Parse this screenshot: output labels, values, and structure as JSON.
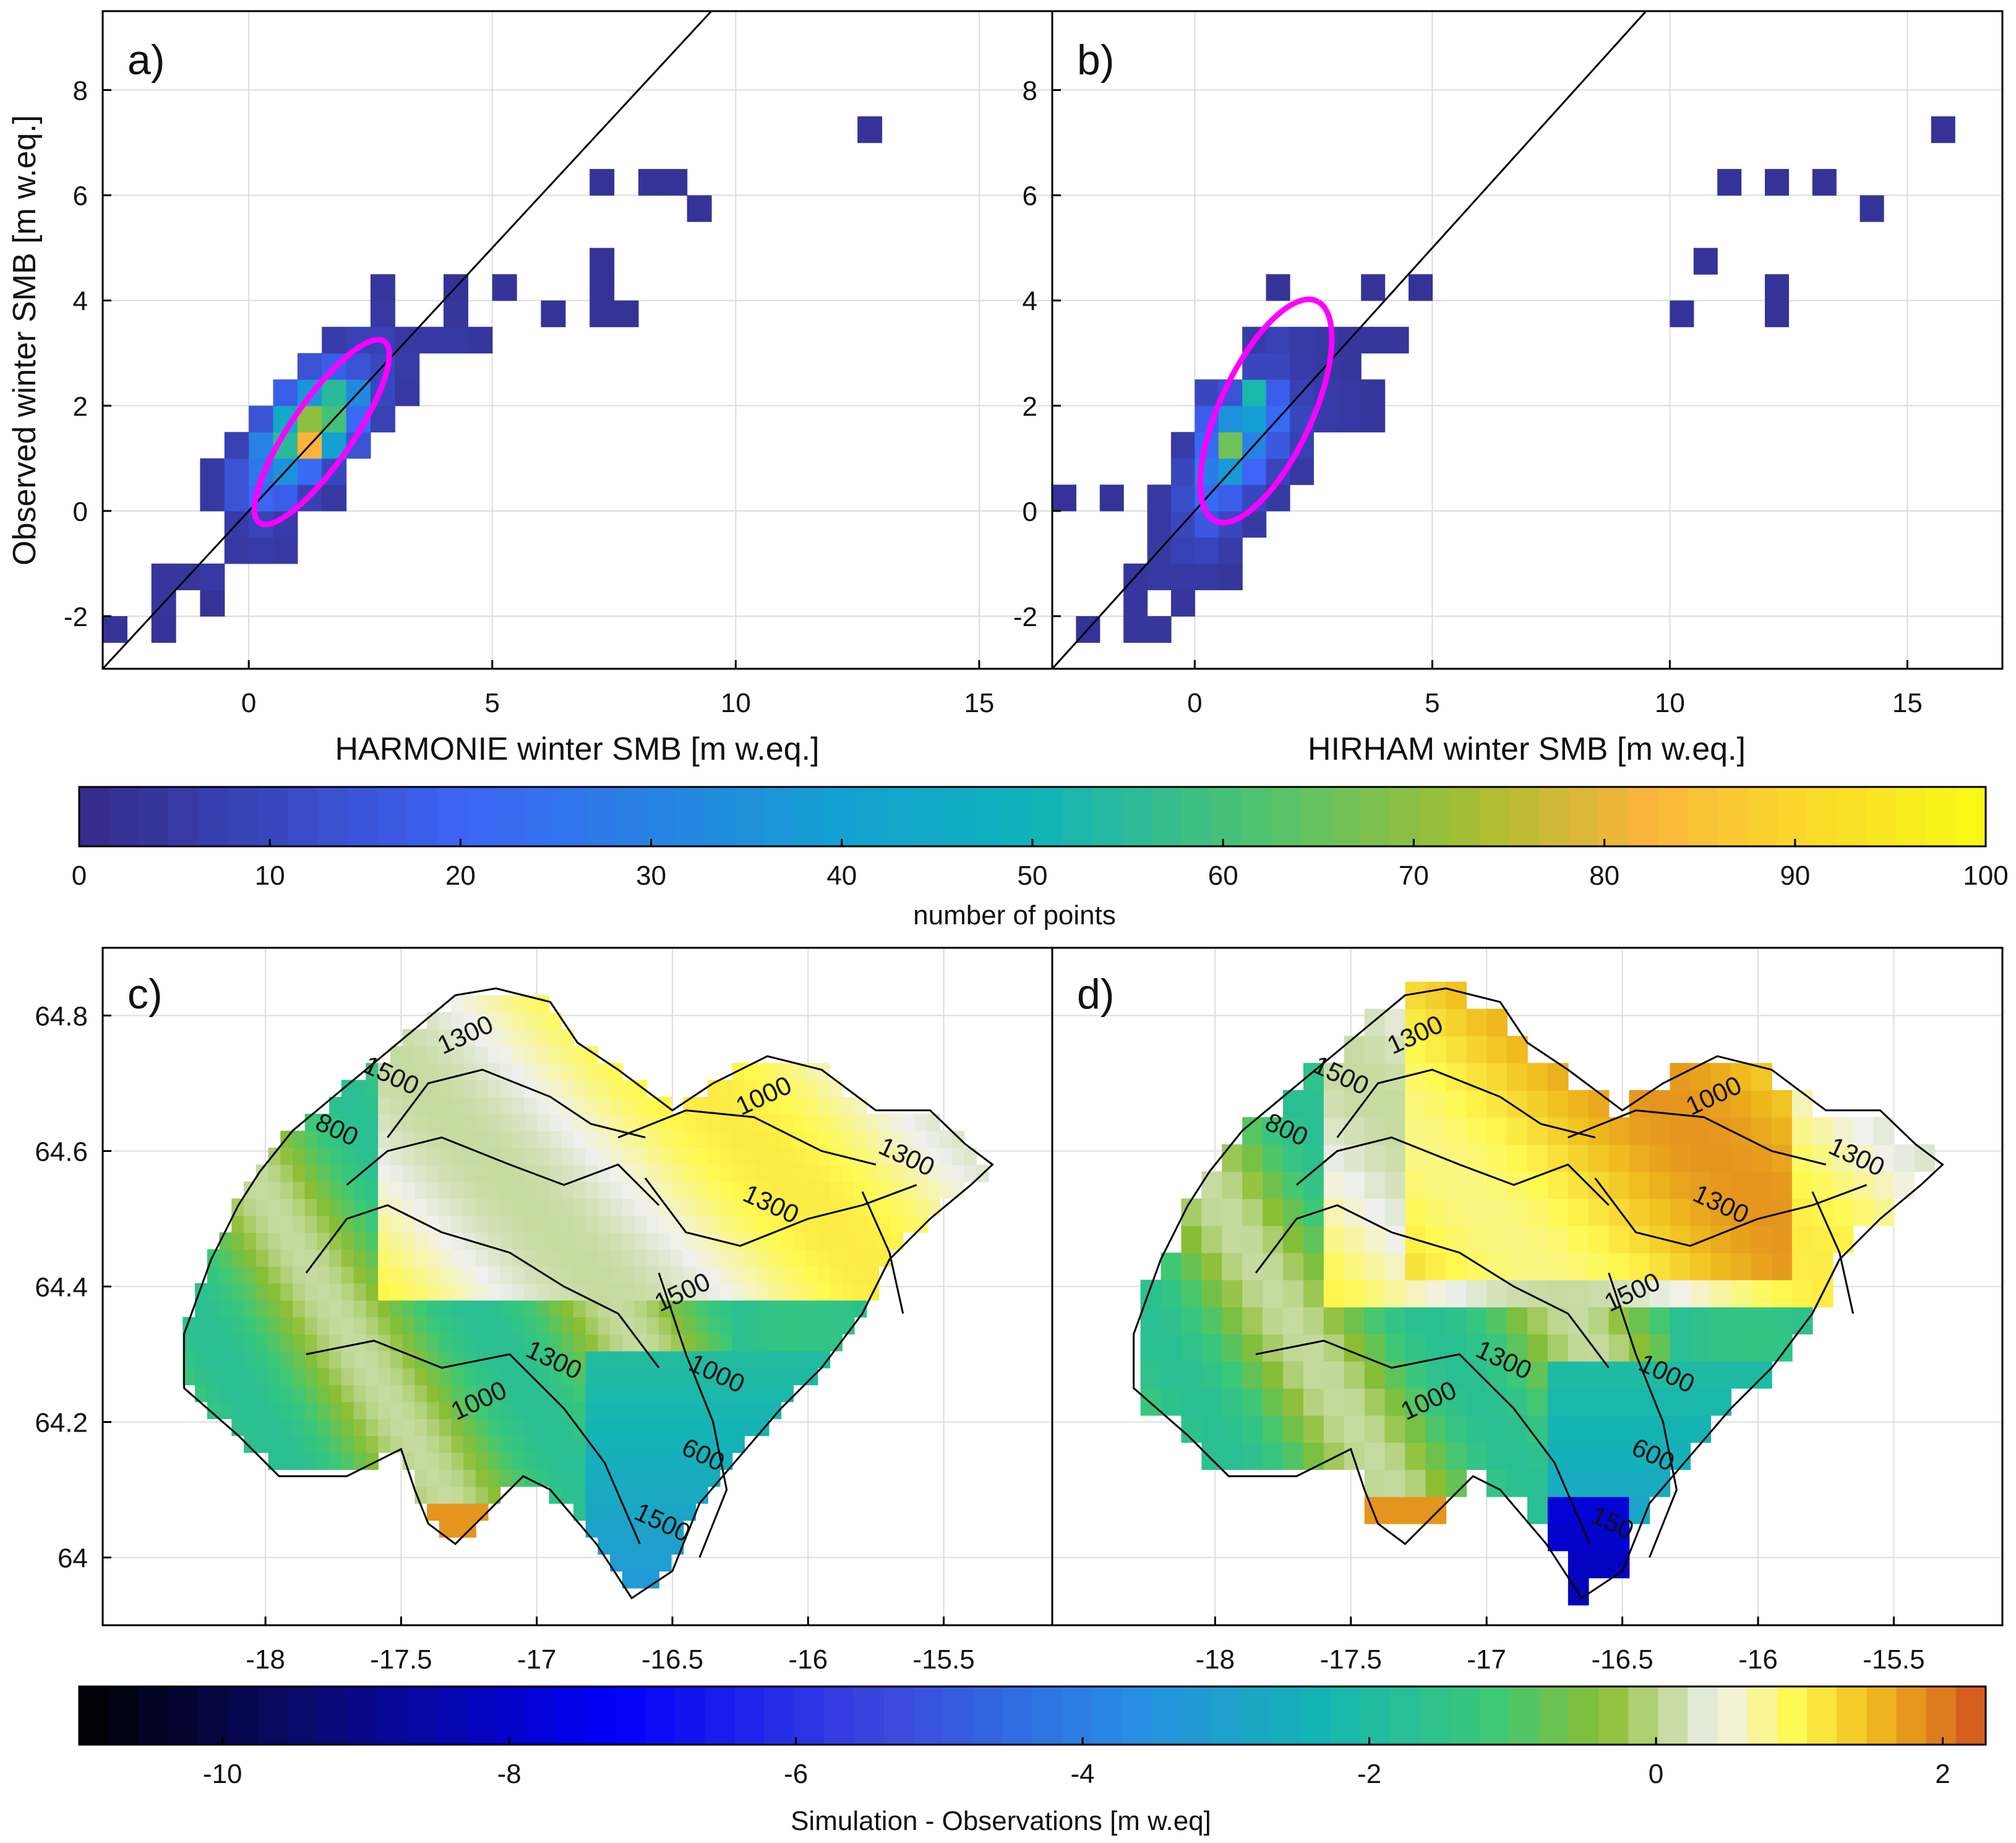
{
  "chart_data": [
    {
      "panel": "a)",
      "type": "heatmap",
      "xlabel": "HARMONIE winter SMB [m w.eq.]",
      "ylabel": "Observed winter SMB [m w.eq.]",
      "xlim": [
        -3,
        16.5
      ],
      "ylim": [
        -3,
        9.5
      ],
      "xticks": [
        "0",
        "5",
        "10",
        "15"
      ],
      "yticks": [
        "-2",
        "0",
        "2",
        "4",
        "6",
        "8"
      ],
      "bin_size": 0.5,
      "one_to_one_line": true,
      "ellipse": {
        "cx": 1.5,
        "cy": 1.5,
        "rx": 2.15,
        "ry": 0.62,
        "angle_deg": 53
      },
      "bins": [
        [
          -2.75,
          -2.25,
          3
        ],
        [
          -1.75,
          -2.25,
          3
        ],
        [
          -1.75,
          -1.75,
          4
        ],
        [
          -1.75,
          -1.25,
          4
        ],
        [
          -1.25,
          -1.25,
          4
        ],
        [
          -0.75,
          -1.75,
          3
        ],
        [
          -0.75,
          -1.25,
          5
        ],
        [
          -0.25,
          -0.75,
          5
        ],
        [
          0.25,
          -0.75,
          6
        ],
        [
          -0.25,
          -0.25,
          6
        ],
        [
          0.25,
          -0.25,
          9
        ],
        [
          0.75,
          -0.75,
          5
        ],
        [
          0.75,
          -0.25,
          6
        ],
        [
          -0.75,
          0.25,
          5
        ],
        [
          -0.25,
          0.25,
          14
        ],
        [
          0.25,
          0.25,
          20
        ],
        [
          0.75,
          0.25,
          18
        ],
        [
          1.25,
          0.25,
          8
        ],
        [
          1.75,
          0.25,
          5
        ],
        [
          -0.75,
          0.75,
          5
        ],
        [
          -0.25,
          0.75,
          14
        ],
        [
          0.25,
          0.75,
          26
        ],
        [
          0.75,
          0.75,
          35
        ],
        [
          1.25,
          0.75,
          22
        ],
        [
          1.75,
          0.75,
          10
        ],
        [
          -0.25,
          1.25,
          8
        ],
        [
          0.25,
          1.25,
          30
        ],
        [
          0.75,
          1.25,
          55
        ],
        [
          1.25,
          1.25,
          82
        ],
        [
          1.75,
          1.25,
          40
        ],
        [
          2.25,
          1.25,
          14
        ],
        [
          0.25,
          1.75,
          14
        ],
        [
          0.75,
          1.75,
          45
        ],
        [
          1.25,
          1.75,
          70
        ],
        [
          1.75,
          1.75,
          60
        ],
        [
          2.25,
          1.75,
          22
        ],
        [
          2.75,
          1.75,
          8
        ],
        [
          0.75,
          2.25,
          18
        ],
        [
          1.25,
          2.25,
          36
        ],
        [
          1.75,
          2.25,
          55
        ],
        [
          2.25,
          2.25,
          32
        ],
        [
          2.75,
          2.25,
          10
        ],
        [
          3.25,
          2.25,
          5
        ],
        [
          1.25,
          2.75,
          14
        ],
        [
          1.75,
          2.75,
          18
        ],
        [
          2.25,
          2.75,
          14
        ],
        [
          2.75,
          2.75,
          10
        ],
        [
          3.25,
          2.75,
          6
        ],
        [
          1.75,
          3.25,
          6
        ],
        [
          2.25,
          3.25,
          8
        ],
        [
          2.75,
          3.25,
          8
        ],
        [
          3.25,
          3.25,
          5
        ],
        [
          3.75,
          3.25,
          5
        ],
        [
          4.25,
          3.25,
          5
        ],
        [
          4.75,
          3.25,
          4
        ],
        [
          2.75,
          3.75,
          5
        ],
        [
          4.25,
          3.75,
          4
        ],
        [
          2.75,
          4.25,
          4
        ],
        [
          4.25,
          4.25,
          3
        ],
        [
          5.25,
          4.25,
          3
        ],
        [
          6.25,
          3.75,
          3
        ],
        [
          7.25,
          3.75,
          3
        ],
        [
          7.25,
          4.25,
          3
        ],
        [
          7.25,
          4.75,
          3
        ],
        [
          7.75,
          3.75,
          3
        ],
        [
          7.25,
          6.25,
          3
        ],
        [
          8.25,
          6.25,
          3
        ],
        [
          8.75,
          6.25,
          3
        ],
        [
          9.25,
          5.75,
          3
        ],
        [
          12.75,
          7.25,
          3
        ]
      ]
    },
    {
      "panel": "b)",
      "type": "heatmap",
      "xlabel": "HIRHAM winter SMB [m w.eq.]",
      "ylabel": "",
      "xlim": [
        -3,
        17
      ],
      "ylim": [
        -3,
        9.5
      ],
      "xticks": [
        "0",
        "5",
        "10",
        "15"
      ],
      "yticks": [
        "-2",
        "0",
        "2",
        "4",
        "6",
        "8"
      ],
      "bin_size": 0.5,
      "one_to_one_line": true,
      "ellipse": {
        "cx": 1.5,
        "cy": 1.9,
        "rx": 2.35,
        "ry": 0.95,
        "angle_deg": 62
      },
      "bins": [
        [
          -2.75,
          0.25,
          3
        ],
        [
          -1.75,
          0.25,
          3
        ],
        [
          -2.25,
          -2.25,
          3
        ],
        [
          -1.25,
          -2.25,
          4
        ],
        [
          -0.75,
          -2.25,
          4
        ],
        [
          -1.25,
          -1.75,
          4
        ],
        [
          -1.25,
          -1.25,
          4
        ],
        [
          -0.75,
          -1.25,
          5
        ],
        [
          -0.25,
          -1.75,
          4
        ],
        [
          -0.25,
          -1.25,
          5
        ],
        [
          0.25,
          -1.25,
          5
        ],
        [
          0.75,
          -1.25,
          4
        ],
        [
          -0.75,
          -0.75,
          5
        ],
        [
          -0.25,
          -0.75,
          8
        ],
        [
          0.25,
          -0.75,
          9
        ],
        [
          0.75,
          -0.75,
          6
        ],
        [
          -0.75,
          -0.25,
          5
        ],
        [
          -0.25,
          -0.25,
          10
        ],
        [
          0.25,
          -0.25,
          16
        ],
        [
          0.75,
          -0.25,
          10
        ],
        [
          1.25,
          -0.25,
          5
        ],
        [
          -0.75,
          0.25,
          5
        ],
        [
          -0.25,
          0.25,
          12
        ],
        [
          0.25,
          0.25,
          22
        ],
        [
          0.75,
          0.25,
          18
        ],
        [
          1.25,
          0.25,
          10
        ],
        [
          1.75,
          0.25,
          5
        ],
        [
          -0.25,
          0.75,
          10
        ],
        [
          0.25,
          0.75,
          28
        ],
        [
          0.75,
          0.75,
          38
        ],
        [
          1.25,
          0.75,
          20
        ],
        [
          1.75,
          0.75,
          9
        ],
        [
          2.25,
          0.75,
          5
        ],
        [
          -0.25,
          1.25,
          6
        ],
        [
          0.25,
          1.25,
          22
        ],
        [
          0.75,
          1.25,
          66
        ],
        [
          1.25,
          1.25,
          30
        ],
        [
          1.75,
          1.25,
          16
        ],
        [
          2.25,
          1.25,
          8
        ],
        [
          0.25,
          1.75,
          18
        ],
        [
          0.75,
          1.75,
          35
        ],
        [
          1.25,
          1.75,
          40
        ],
        [
          1.75,
          1.75,
          22
        ],
        [
          2.25,
          1.75,
          10
        ],
        [
          2.75,
          1.75,
          6
        ],
        [
          3.25,
          1.75,
          5
        ],
        [
          3.75,
          1.75,
          4
        ],
        [
          0.25,
          2.25,
          10
        ],
        [
          0.75,
          2.25,
          14
        ],
        [
          1.25,
          2.25,
          52
        ],
        [
          1.75,
          2.25,
          18
        ],
        [
          2.25,
          2.25,
          8
        ],
        [
          2.75,
          2.25,
          6
        ],
        [
          3.25,
          2.25,
          5
        ],
        [
          3.75,
          2.25,
          4
        ],
        [
          1.25,
          2.75,
          10
        ],
        [
          1.75,
          2.75,
          10
        ],
        [
          2.25,
          2.75,
          6
        ],
        [
          2.75,
          2.75,
          5
        ],
        [
          3.25,
          2.75,
          4
        ],
        [
          1.25,
          3.25,
          6
        ],
        [
          1.75,
          3.25,
          8
        ],
        [
          2.25,
          3.25,
          6
        ],
        [
          2.75,
          3.25,
          5
        ],
        [
          3.25,
          3.25,
          4
        ],
        [
          3.75,
          3.25,
          4
        ],
        [
          4.25,
          3.25,
          4
        ],
        [
          1.75,
          4.25,
          3
        ],
        [
          3.75,
          4.25,
          3
        ],
        [
          4.75,
          4.25,
          3
        ],
        [
          10.25,
          3.75,
          3
        ],
        [
          10.75,
          4.75,
          3
        ],
        [
          12.25,
          3.75,
          3
        ],
        [
          12.25,
          4.25,
          3
        ],
        [
          11.25,
          6.25,
          3
        ],
        [
          12.25,
          6.25,
          3
        ],
        [
          13.25,
          6.25,
          3
        ],
        [
          14.25,
          5.75,
          3
        ],
        [
          15.75,
          7.25,
          3
        ]
      ]
    },
    {
      "panel": "c)",
      "type": "heatmap",
      "description_kind": "map",
      "xlim": [
        -18.6,
        -15.1
      ],
      "ylim": [
        63.9,
        64.9
      ],
      "xticks": [
        "-18",
        "-17.5",
        "-17",
        "-16.5",
        "-16",
        "-15.5"
      ],
      "yticks": [
        "64",
        "64.2",
        "64.4",
        "64.6",
        "64.8"
      ],
      "contour_labels": [
        "1300",
        "1500",
        "800",
        "1000",
        "1300",
        "1300",
        "1500",
        "1000",
        "1300",
        "1000",
        "600",
        "1500"
      ]
    },
    {
      "panel": "d)",
      "type": "heatmap",
      "description_kind": "map",
      "xlim": [
        -18.6,
        -15.1
      ],
      "ylim": [
        63.9,
        64.9
      ],
      "xticks": [
        "-18",
        "-17.5",
        "-17",
        "-16.5",
        "-16",
        "-15.5"
      ],
      "yticks": [],
      "contour_labels": [
        "1300",
        "1500",
        "800",
        "1000",
        "1300",
        "1300",
        "1500",
        "1000",
        "1300",
        "1000",
        "600",
        "150"
      ]
    },
    {
      "type": "colorbar",
      "name": "number of points",
      "label": "number of points",
      "range": [
        0,
        100
      ],
      "ticks": [
        "0",
        "10",
        "20",
        "30",
        "40",
        "50",
        "60",
        "70",
        "80",
        "90",
        "100"
      ]
    },
    {
      "type": "colorbar",
      "name": "difference",
      "label": "Simulation - Observations [m w.eq]",
      "range": [
        -11,
        2.3
      ],
      "ticks": [
        "-10",
        "-8",
        "-6",
        "-4",
        "-2",
        "0",
        "2"
      ]
    }
  ]
}
